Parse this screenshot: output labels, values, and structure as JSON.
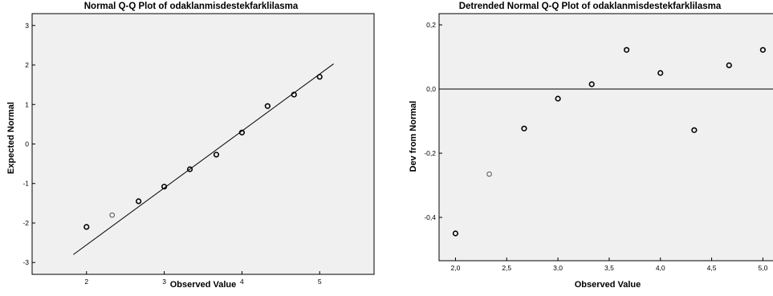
{
  "chart_data": [
    {
      "type": "scatter",
      "title": "Normal Q-Q Plot of odaklanmisdestekfarklilasma",
      "xlabel": "Observed Value",
      "ylabel": "Expected Normal",
      "xlim": [
        1.3,
        5.7
      ],
      "ylim": [
        -3.3,
        3.3
      ],
      "x_ticks": [
        2,
        3,
        4,
        5
      ],
      "x_tick_labels": [
        "2",
        "3",
        "4",
        "5"
      ],
      "y_ticks": [
        -3,
        -2,
        -1,
        0,
        1,
        2,
        3
      ],
      "y_tick_labels": [
        "-3",
        "-2",
        "-1",
        "0",
        "1",
        "2",
        "3"
      ],
      "reference_line": {
        "x": [
          1.83,
          5.18
        ],
        "y": [
          -2.8,
          2.03
        ]
      },
      "grid": false,
      "points": [
        {
          "x": 2.0,
          "y": -2.1,
          "emphasis": "bold"
        },
        {
          "x": 2.33,
          "y": -1.8,
          "emphasis": "light"
        },
        {
          "x": 2.67,
          "y": -1.45,
          "emphasis": "bold"
        },
        {
          "x": 3.0,
          "y": -1.08,
          "emphasis": "bold"
        },
        {
          "x": 3.33,
          "y": -0.64,
          "emphasis": "bold"
        },
        {
          "x": 3.67,
          "y": -0.27,
          "emphasis": "bold"
        },
        {
          "x": 4.0,
          "y": 0.29,
          "emphasis": "bold"
        },
        {
          "x": 4.33,
          "y": 0.96,
          "emphasis": "bold"
        },
        {
          "x": 4.67,
          "y": 1.25,
          "emphasis": "bold"
        },
        {
          "x": 5.0,
          "y": 1.7,
          "emphasis": "bold"
        }
      ]
    },
    {
      "type": "scatter",
      "title": "Detrended Normal Q-Q Plot of odaklanmisdestekfarklilasma",
      "xlabel": "Observed Value",
      "ylabel": "Dev from Normal",
      "xlim": [
        1.84,
        5.13
      ],
      "ylim": [
        -0.535,
        0.235
      ],
      "x_ticks": [
        2.0,
        2.5,
        3.0,
        3.5,
        4.0,
        4.5,
        5.0
      ],
      "x_tick_labels": [
        "2,0",
        "2,5",
        "3,0",
        "3,5",
        "4,0",
        "4,5",
        "5,0"
      ],
      "y_ticks": [
        -0.4,
        -0.2,
        0.0,
        0.2
      ],
      "y_tick_labels": [
        "-0,4",
        "-0,2",
        "0,0",
        "0,2"
      ],
      "reference_line": {
        "y": 0.0
      },
      "grid": false,
      "points": [
        {
          "x": 2.0,
          "y": -0.45,
          "emphasis": "bold"
        },
        {
          "x": 2.33,
          "y": -0.265,
          "emphasis": "light"
        },
        {
          "x": 2.67,
          "y": -0.123,
          "emphasis": "bold"
        },
        {
          "x": 3.0,
          "y": -0.03,
          "emphasis": "bold"
        },
        {
          "x": 3.33,
          "y": 0.015,
          "emphasis": "bold"
        },
        {
          "x": 3.67,
          "y": 0.122,
          "emphasis": "bold"
        },
        {
          "x": 4.0,
          "y": 0.05,
          "emphasis": "bold"
        },
        {
          "x": 4.33,
          "y": -0.128,
          "emphasis": "bold"
        },
        {
          "x": 4.67,
          "y": 0.074,
          "emphasis": "bold"
        },
        {
          "x": 5.0,
          "y": 0.122,
          "emphasis": "bold"
        }
      ]
    }
  ]
}
